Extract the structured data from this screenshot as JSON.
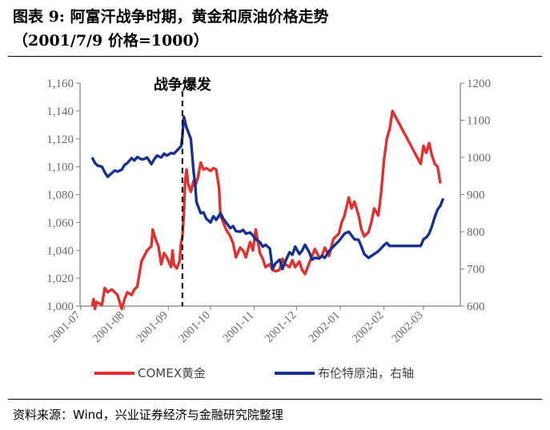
{
  "header": {
    "title_line1": "图表 9:  阿富汗战争时期，黄金和原油价格走势",
    "title_line2": "（2001/7/9 价格=1000）"
  },
  "footer": {
    "source": "资料来源：Wind，兴业证券经济与金融研究院整理"
  },
  "colors": {
    "gold": "#e03030",
    "oil": "#16318f",
    "axis": "#7f7f7f"
  },
  "chart_data": {
    "type": "line",
    "title": "阿富汗战争时期，黄金和原油价格走势",
    "x_ticks": [
      "2001-07",
      "2001-08",
      "2001-09",
      "2001-10",
      "2001-11",
      "2001-12",
      "2002-01",
      "2002-02",
      "2002-03"
    ],
    "y_left": {
      "lim": [
        1000,
        1160
      ],
      "ticks": [
        "1,000",
        "1,020",
        "1,040",
        "1,060",
        "1,080",
        "1,100",
        "1,120",
        "1,140",
        "1,160"
      ]
    },
    "y_right": {
      "lim": [
        600,
        1200
      ],
      "ticks": [
        "600",
        "700",
        "800",
        "900",
        "1000",
        "1100",
        "1200"
      ]
    },
    "annotation": {
      "text": "战争爆发",
      "date": "2001-09-11"
    },
    "legend": {
      "position": "bottom",
      "entries": [
        "COMEX黄金",
        "布伦特原油，右轴"
      ]
    },
    "series": [
      {
        "name": "COMEX黄金",
        "axis": "left",
        "points": [
          [
            "2001-07-09",
            1000
          ],
          [
            "2001-07-10",
            1005
          ],
          [
            "2001-07-11",
            998
          ],
          [
            "2001-07-12",
            1003
          ],
          [
            "2001-07-16",
            1001
          ],
          [
            "2001-07-18",
            1013
          ],
          [
            "2001-07-20",
            1010
          ],
          [
            "2001-07-23",
            1012
          ],
          [
            "2001-07-25",
            1010
          ],
          [
            "2001-07-27",
            1008
          ],
          [
            "2001-07-30",
            998
          ],
          [
            "2001-08-01",
            1005
          ],
          [
            "2001-08-03",
            1010
          ],
          [
            "2001-08-06",
            1008
          ],
          [
            "2001-08-08",
            1012
          ],
          [
            "2001-08-10",
            1014
          ],
          [
            "2001-08-13",
            1032
          ],
          [
            "2001-08-15",
            1036
          ],
          [
            "2001-08-17",
            1040
          ],
          [
            "2001-08-20",
            1043
          ],
          [
            "2001-08-21",
            1055
          ],
          [
            "2001-08-23",
            1048
          ],
          [
            "2001-08-25",
            1043
          ],
          [
            "2001-08-27",
            1030
          ],
          [
            "2001-08-29",
            1038
          ],
          [
            "2001-08-31",
            1035
          ],
          [
            "2001-09-03",
            1028
          ],
          [
            "2001-09-04",
            1040
          ],
          [
            "2001-09-05",
            1030
          ],
          [
            "2001-09-07",
            1027
          ],
          [
            "2001-09-09",
            1032
          ],
          [
            "2001-09-10",
            1045
          ],
          [
            "2001-09-11",
            1050
          ],
          [
            "2001-09-12",
            1065
          ],
          [
            "2001-09-13",
            1090
          ],
          [
            "2001-09-14",
            1098
          ],
          [
            "2001-09-15",
            1088
          ],
          [
            "2001-09-16",
            1085
          ],
          [
            "2001-09-17",
            1082
          ],
          [
            "2001-09-19",
            1090
          ],
          [
            "2001-09-20",
            1086
          ],
          [
            "2001-09-22",
            1092
          ],
          [
            "2001-09-24",
            1103
          ],
          [
            "2001-09-26",
            1098
          ],
          [
            "2001-09-28",
            1099
          ],
          [
            "2001-10-01",
            1097
          ],
          [
            "2001-10-03",
            1099
          ],
          [
            "2001-10-05",
            1098
          ],
          [
            "2001-10-07",
            1085
          ],
          [
            "2001-10-08",
            1065
          ],
          [
            "2001-10-10",
            1060
          ],
          [
            "2001-10-12",
            1055
          ],
          [
            "2001-10-15",
            1050
          ],
          [
            "2001-10-17",
            1045
          ],
          [
            "2001-10-19",
            1035
          ],
          [
            "2001-10-22",
            1042
          ],
          [
            "2001-10-24",
            1040
          ],
          [
            "2001-10-26",
            1035
          ],
          [
            "2001-10-29",
            1046
          ],
          [
            "2001-10-31",
            1040
          ],
          [
            "2001-11-02",
            1055
          ],
          [
            "2001-11-05",
            1038
          ],
          [
            "2001-11-07",
            1034
          ],
          [
            "2001-11-09",
            1028
          ],
          [
            "2001-11-12",
            1030
          ],
          [
            "2001-11-14",
            1026
          ],
          [
            "2001-11-16",
            1025
          ],
          [
            "2001-11-19",
            1026
          ],
          [
            "2001-11-21",
            1034
          ],
          [
            "2001-11-23",
            1030
          ],
          [
            "2001-11-26",
            1028
          ],
          [
            "2001-11-28",
            1033
          ],
          [
            "2001-11-30",
            1028
          ],
          [
            "2001-12-03",
            1032
          ],
          [
            "2001-12-05",
            1026
          ],
          [
            "2001-12-07",
            1023
          ],
          [
            "2001-12-10",
            1031
          ],
          [
            "2001-12-12",
            1036
          ],
          [
            "2001-12-14",
            1041
          ],
          [
            "2001-12-17",
            1035
          ],
          [
            "2001-12-19",
            1036
          ],
          [
            "2001-12-21",
            1042
          ],
          [
            "2001-12-24",
            1036
          ],
          [
            "2001-12-27",
            1048
          ],
          [
            "2001-12-31",
            1052
          ],
          [
            "2002-01-02",
            1060
          ],
          [
            "2002-01-04",
            1065
          ],
          [
            "2002-01-07",
            1078
          ],
          [
            "2002-01-09",
            1070
          ],
          [
            "2002-01-11",
            1075
          ],
          [
            "2002-01-14",
            1065
          ],
          [
            "2002-01-16",
            1055
          ],
          [
            "2002-01-18",
            1050
          ],
          [
            "2002-01-21",
            1053
          ],
          [
            "2002-01-23",
            1060
          ],
          [
            "2002-01-25",
            1070
          ],
          [
            "2002-01-28",
            1065
          ],
          [
            "2002-01-30",
            1082
          ],
          [
            "2002-02-01",
            1105
          ],
          [
            "2002-02-03",
            1120
          ],
          [
            "2002-02-05",
            1127
          ],
          [
            "2002-02-07",
            1140
          ],
          [
            "2002-02-27",
            1102
          ],
          [
            "2002-03-01",
            1115
          ],
          [
            "2002-03-03",
            1110
          ],
          [
            "2002-03-05",
            1117
          ],
          [
            "2002-03-07",
            1108
          ],
          [
            "2002-03-09",
            1102
          ],
          [
            "2002-03-11",
            1100
          ],
          [
            "2002-03-13",
            1088
          ]
        ]
      },
      {
        "name": "布伦特原油，右轴",
        "axis": "right",
        "points": [
          [
            "2001-07-09",
            1000
          ],
          [
            "2001-07-11",
            985
          ],
          [
            "2001-07-13",
            978
          ],
          [
            "2001-07-16",
            975
          ],
          [
            "2001-07-18",
            960
          ],
          [
            "2001-07-20",
            948
          ],
          [
            "2001-07-23",
            958
          ],
          [
            "2001-07-25",
            965
          ],
          [
            "2001-07-27",
            962
          ],
          [
            "2001-07-30",
            967
          ],
          [
            "2001-08-01",
            980
          ],
          [
            "2001-08-03",
            985
          ],
          [
            "2001-08-06",
            998
          ],
          [
            "2001-08-08",
            992
          ],
          [
            "2001-08-10",
            1001
          ],
          [
            "2001-08-13",
            995
          ],
          [
            "2001-08-15",
            996
          ],
          [
            "2001-08-17",
            1000
          ],
          [
            "2001-08-20",
            982
          ],
          [
            "2001-08-22",
            995
          ],
          [
            "2001-08-24",
            1005
          ],
          [
            "2001-08-27",
            1000
          ],
          [
            "2001-08-29",
            1010
          ],
          [
            "2001-08-31",
            1005
          ],
          [
            "2001-09-03",
            1012
          ],
          [
            "2001-09-05",
            1010
          ],
          [
            "2001-09-07",
            1018
          ],
          [
            "2001-09-10",
            1030
          ],
          [
            "2001-09-11",
            1055
          ],
          [
            "2001-09-12",
            1110
          ],
          [
            "2001-09-13",
            1095
          ],
          [
            "2001-09-14",
            1080
          ],
          [
            "2001-09-17",
            1050
          ],
          [
            "2001-09-19",
            960
          ],
          [
            "2001-09-20",
            930
          ],
          [
            "2001-09-21",
            880
          ],
          [
            "2001-09-24",
            850
          ],
          [
            "2001-09-26",
            852
          ],
          [
            "2001-09-28",
            835
          ],
          [
            "2001-10-01",
            825
          ],
          [
            "2001-10-03",
            842
          ],
          [
            "2001-10-05",
            832
          ],
          [
            "2001-10-08",
            850
          ],
          [
            "2001-10-10",
            835
          ],
          [
            "2001-10-12",
            825
          ],
          [
            "2001-10-15",
            810
          ],
          [
            "2001-10-17",
            815
          ],
          [
            "2001-10-19",
            802
          ],
          [
            "2001-10-22",
            800
          ],
          [
            "2001-10-24",
            805
          ],
          [
            "2001-10-26",
            795
          ],
          [
            "2001-10-29",
            798
          ],
          [
            "2001-10-31",
            790
          ],
          [
            "2001-11-02",
            780
          ],
          [
            "2001-11-05",
            772
          ],
          [
            "2001-11-07",
            760
          ],
          [
            "2001-11-09",
            765
          ],
          [
            "2001-11-12",
            755
          ],
          [
            "2001-11-14",
            700
          ],
          [
            "2001-11-16",
            715
          ],
          [
            "2001-11-19",
            725
          ],
          [
            "2001-11-21",
            700
          ],
          [
            "2001-11-23",
            720
          ],
          [
            "2001-11-26",
            745
          ],
          [
            "2001-11-28",
            738
          ],
          [
            "2001-11-30",
            760
          ],
          [
            "2001-12-03",
            740
          ],
          [
            "2001-12-05",
            750
          ],
          [
            "2001-12-07",
            765
          ],
          [
            "2001-12-10",
            745
          ],
          [
            "2001-12-12",
            725
          ],
          [
            "2001-12-14",
            730
          ],
          [
            "2001-12-17",
            728
          ],
          [
            "2001-12-19",
            735
          ],
          [
            "2001-12-21",
            730
          ],
          [
            "2001-12-24",
            748
          ],
          [
            "2001-12-27",
            760
          ],
          [
            "2001-12-31",
            775
          ],
          [
            "2002-01-02",
            785
          ],
          [
            "2002-01-04",
            795
          ],
          [
            "2002-01-07",
            800
          ],
          [
            "2002-01-09",
            790
          ],
          [
            "2002-01-11",
            780
          ],
          [
            "2002-01-14",
            778
          ],
          [
            "2002-01-16",
            760
          ],
          [
            "2002-01-18",
            740
          ],
          [
            "2002-01-21",
            730
          ],
          [
            "2002-01-23",
            735
          ],
          [
            "2002-01-25",
            740
          ],
          [
            "2002-01-28",
            748
          ],
          [
            "2002-01-30",
            756
          ],
          [
            "2002-02-01",
            764
          ],
          [
            "2002-02-03",
            770
          ],
          [
            "2002-02-05",
            762
          ],
          [
            "2002-02-07",
            762
          ],
          [
            "2002-02-27",
            762
          ],
          [
            "2002-03-01",
            780
          ],
          [
            "2002-03-03",
            785
          ],
          [
            "2002-03-05",
            795
          ],
          [
            "2002-03-07",
            815
          ],
          [
            "2002-03-09",
            840
          ],
          [
            "2002-03-11",
            860
          ],
          [
            "2002-03-13",
            870
          ],
          [
            "2002-03-15",
            890
          ]
        ]
      }
    ]
  }
}
